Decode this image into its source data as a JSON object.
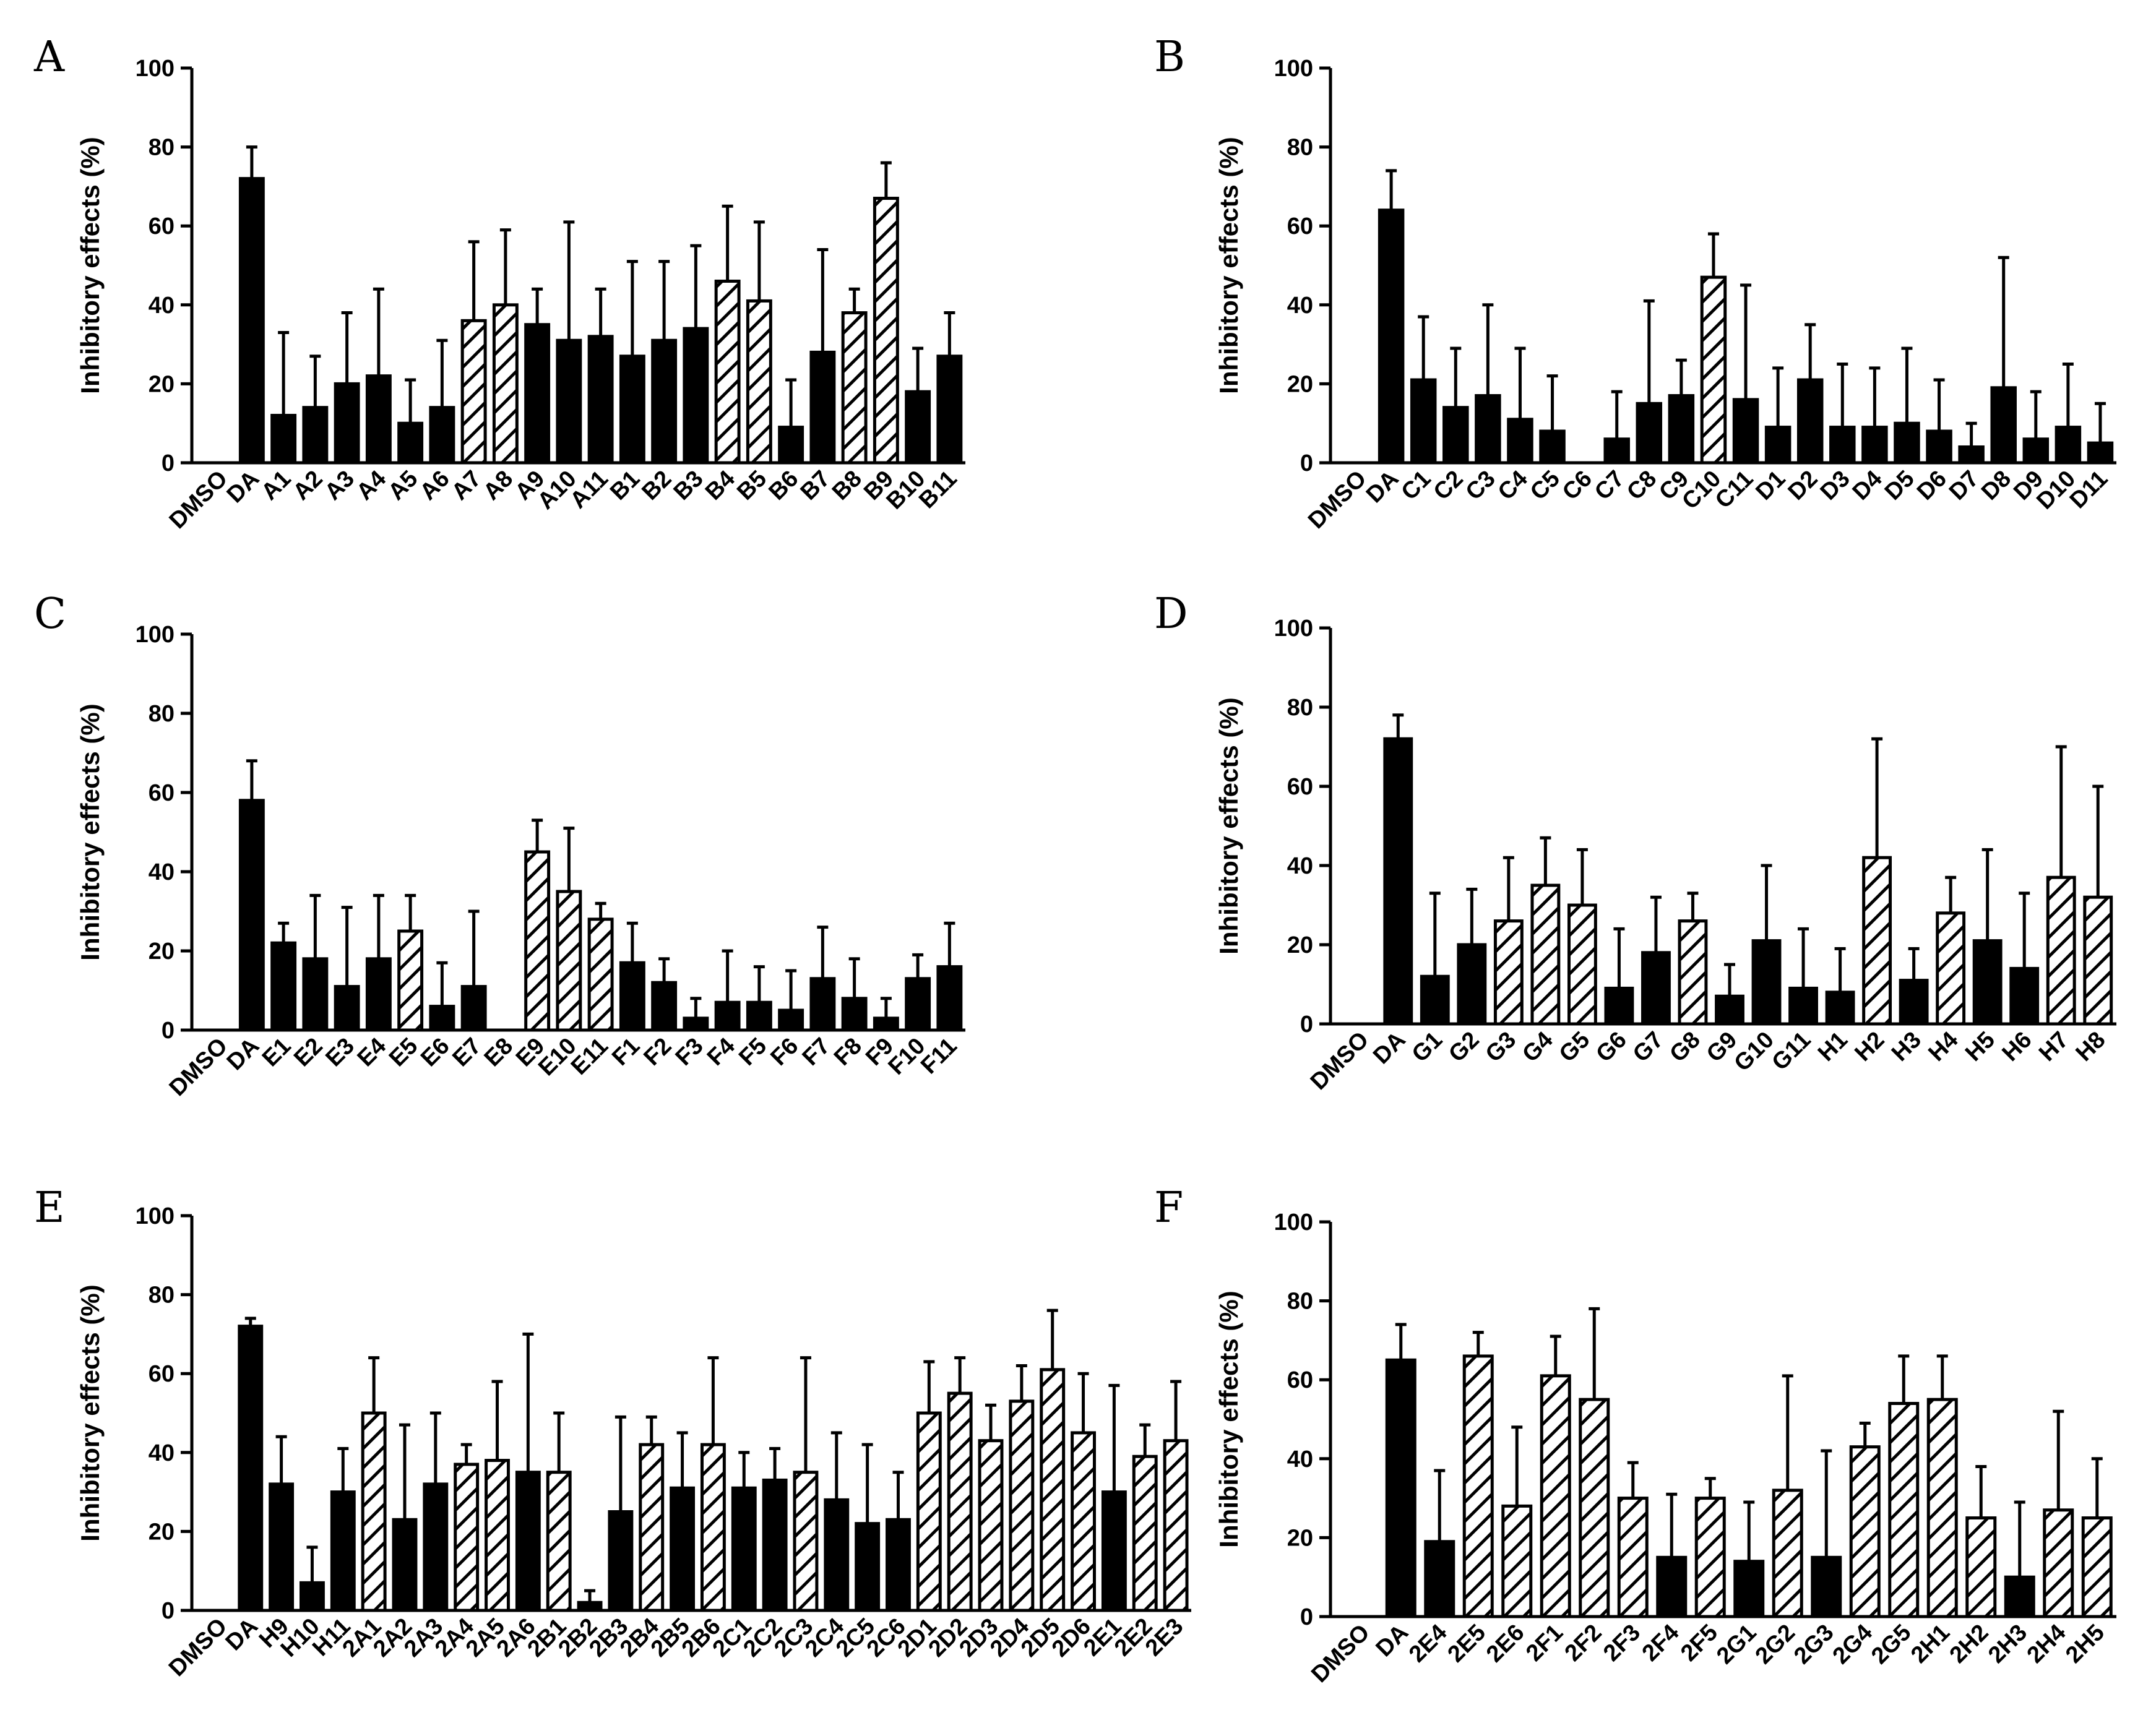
{
  "colors": {
    "bar_solid": "#000000",
    "bar_hatched_fill": "#ffffff",
    "hatch": "#000000",
    "axis": "#000000"
  },
  "chart_data": [
    {
      "panel": "A",
      "type": "bar",
      "ylabel": "Inhibitory effects (%)",
      "ylim": [
        0,
        100
      ],
      "yticks": [
        "0",
        "20",
        "40",
        "60",
        "80",
        "100"
      ],
      "grid": false,
      "legend": "none",
      "categories": [
        "DMSO",
        "DA",
        "A1",
        "A2",
        "A3",
        "A4",
        "A5",
        "A6",
        "A7",
        "A8",
        "A9",
        "A10",
        "A11",
        "B1",
        "B2",
        "B3",
        "B4",
        "B5",
        "B6",
        "B7",
        "B8",
        "B9",
        "B10",
        "B11"
      ],
      "values": [
        0,
        72,
        12,
        14,
        20,
        22,
        10,
        14,
        36,
        40,
        35,
        31,
        32,
        27,
        31,
        34,
        46,
        41,
        9,
        28,
        38,
        67,
        18,
        27
      ],
      "error": [
        0,
        8,
        21,
        13,
        18,
        22,
        11,
        17,
        20,
        19,
        9,
        30,
        12,
        24,
        20,
        21,
        19,
        20,
        12,
        26,
        6,
        9,
        11,
        11
      ],
      "hatched": [
        false,
        false,
        false,
        false,
        false,
        false,
        false,
        false,
        true,
        true,
        false,
        false,
        false,
        false,
        false,
        false,
        true,
        true,
        false,
        false,
        true,
        true,
        false,
        false
      ]
    },
    {
      "panel": "B",
      "type": "bar",
      "ylabel": "Inhibitory effects (%)",
      "ylim": [
        0,
        100
      ],
      "yticks": [
        "0",
        "20",
        "40",
        "60",
        "80",
        "100"
      ],
      "grid": false,
      "legend": "none",
      "categories": [
        "DMSO",
        "DA",
        "C1",
        "C2",
        "C3",
        "C4",
        "C5",
        "C6",
        "C7",
        "C8",
        "C9",
        "C10",
        "C11",
        "D1",
        "D2",
        "D3",
        "D4",
        "D5",
        "D6",
        "D7",
        "D8",
        "D9",
        "D10",
        "D11"
      ],
      "values": [
        0,
        64,
        21,
        14,
        17,
        11,
        8,
        0,
        6,
        15,
        17,
        47,
        16,
        9,
        21,
        9,
        9,
        10,
        8,
        4,
        19,
        6,
        9,
        5
      ],
      "error": [
        0,
        10,
        16,
        15,
        23,
        18,
        14,
        0,
        12,
        26,
        9,
        11,
        29,
        15,
        14,
        16,
        15,
        19,
        13,
        6,
        33,
        12,
        16,
        10
      ],
      "hatched": [
        false,
        false,
        false,
        false,
        false,
        false,
        false,
        false,
        false,
        false,
        false,
        true,
        false,
        false,
        false,
        false,
        false,
        false,
        false,
        false,
        false,
        false,
        false,
        false
      ]
    },
    {
      "panel": "C",
      "type": "bar",
      "ylabel": "Inhibitory effects (%)",
      "ylim": [
        0,
        100
      ],
      "yticks": [
        "0",
        "20",
        "40",
        "60",
        "80",
        "100"
      ],
      "grid": false,
      "legend": "none",
      "categories": [
        "DMSO",
        "DA",
        "E1",
        "E2",
        "E3",
        "E4",
        "E5",
        "E6",
        "E7",
        "E8",
        "E9",
        "E10",
        "E11",
        "F1",
        "F2",
        "F3",
        "F4",
        "F5",
        "F6",
        "F7",
        "F8",
        "F9",
        "F10",
        "F11"
      ],
      "values": [
        0,
        58,
        22,
        18,
        11,
        18,
        25,
        6,
        11,
        0,
        45,
        35,
        28,
        17,
        12,
        3,
        7,
        7,
        5,
        13,
        8,
        3,
        13,
        16
      ],
      "error": [
        0,
        10,
        5,
        16,
        20,
        16,
        9,
        11,
        19,
        0,
        8,
        16,
        4,
        10,
        6,
        5,
        13,
        9,
        10,
        13,
        10,
        5,
        6,
        11
      ],
      "hatched": [
        false,
        false,
        false,
        false,
        false,
        false,
        true,
        false,
        false,
        false,
        true,
        true,
        true,
        false,
        false,
        false,
        false,
        false,
        false,
        false,
        false,
        false,
        false,
        false
      ]
    },
    {
      "panel": "D",
      "type": "bar",
      "ylabel": "Inhibitory effects (%)",
      "ylim": [
        0,
        100
      ],
      "yticks": [
        "0",
        "20",
        "40",
        "60",
        "80",
        "100"
      ],
      "grid": false,
      "legend": "none",
      "categories": [
        "DMSO",
        "DA",
        "G1",
        "G2",
        "G3",
        "G4",
        "G5",
        "G6",
        "G7",
        "G8",
        "G9",
        "G10",
        "G11",
        "H1",
        "H2",
        "H3",
        "H4",
        "H5",
        "H6",
        "H7",
        "H8"
      ],
      "values": [
        0,
        72,
        12,
        20,
        26,
        35,
        30,
        9,
        18,
        26,
        7,
        21,
        9,
        8,
        42,
        11,
        28,
        21,
        14,
        37,
        32
      ],
      "error": [
        0,
        6,
        21,
        14,
        16,
        12,
        14,
        15,
        14,
        7,
        8,
        19,
        15,
        11,
        30,
        8,
        9,
        23,
        19,
        33,
        28
      ],
      "hatched": [
        false,
        false,
        false,
        false,
        true,
        true,
        true,
        false,
        false,
        true,
        false,
        false,
        false,
        false,
        true,
        false,
        true,
        false,
        false,
        true,
        true
      ]
    },
    {
      "panel": "E",
      "type": "bar",
      "ylabel": "Inhibitory effects (%)",
      "ylim": [
        0,
        100
      ],
      "yticks": [
        "0",
        "20",
        "40",
        "60",
        "80",
        "100"
      ],
      "grid": false,
      "legend": "none",
      "categories": [
        "DMSO",
        "DA",
        "H9",
        "H10",
        "H11",
        "2A1",
        "2A2",
        "2A3",
        "2A4",
        "2A5",
        "2A6",
        "2B1",
        "2B2",
        "2B3",
        "2B4",
        "2B5",
        "2B6",
        "2C1",
        "2C2",
        "2C3",
        "2C4",
        "2C5",
        "2C6",
        "2D1",
        "2D2",
        "2D3",
        "2D4",
        "2D5",
        "2D6",
        "2E1",
        "2E2",
        "2E3"
      ],
      "values": [
        0,
        72,
        32,
        7,
        30,
        50,
        23,
        32,
        37,
        38,
        35,
        35,
        2,
        25,
        42,
        31,
        42,
        31,
        33,
        35,
        28,
        22,
        23,
        50,
        55,
        43,
        53,
        61,
        45,
        30,
        39,
        43
      ],
      "error": [
        0,
        2,
        12,
        9,
        11,
        14,
        24,
        18,
        5,
        20,
        35,
        15,
        3,
        24,
        7,
        14,
        22,
        9,
        8,
        29,
        17,
        20,
        12,
        13,
        9,
        9,
        9,
        15,
        15,
        27,
        8,
        15
      ],
      "hatched": [
        false,
        false,
        false,
        false,
        false,
        true,
        false,
        false,
        true,
        true,
        false,
        true,
        false,
        false,
        true,
        false,
        true,
        false,
        false,
        true,
        false,
        false,
        false,
        true,
        true,
        true,
        true,
        true,
        true,
        false,
        true,
        true
      ]
    },
    {
      "panel": "F",
      "type": "bar",
      "ylabel": "Inhibitory effects (%)",
      "ylim": [
        0,
        100
      ],
      "yticks": [
        "0",
        "20",
        "40",
        "60",
        "80",
        "100"
      ],
      "grid": false,
      "legend": "none",
      "categories": [
        "DMSO",
        "DA",
        "2E4",
        "2E5",
        "2E6",
        "2F1",
        "2F2",
        "2F3",
        "2F4",
        "2F5",
        "2G1",
        "2G2",
        "2G3",
        "2G4",
        "2G5",
        "2H1",
        "2H2",
        "2H3",
        "2H4",
        "2H5"
      ],
      "values": [
        0,
        65,
        19,
        66,
        28,
        61,
        55,
        30,
        15,
        30,
        14,
        32,
        15,
        43,
        54,
        55,
        25,
        10,
        27,
        25
      ],
      "error": [
        0,
        9,
        18,
        6,
        20,
        10,
        23,
        9,
        16,
        5,
        15,
        29,
        27,
        6,
        12,
        11,
        13,
        19,
        25,
        15
      ],
      "hatched": [
        false,
        false,
        false,
        true,
        true,
        true,
        true,
        true,
        false,
        true,
        false,
        true,
        false,
        true,
        true,
        true,
        true,
        false,
        true,
        true
      ]
    }
  ]
}
